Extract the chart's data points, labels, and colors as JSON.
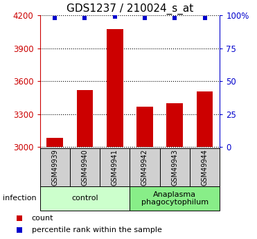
{
  "title": "GDS1237 / 210024_s_at",
  "samples": [
    "GSM49939",
    "GSM49940",
    "GSM49941",
    "GSM49942",
    "GSM49943",
    "GSM49944"
  ],
  "counts": [
    3085,
    3520,
    4075,
    3370,
    3400,
    3510
  ],
  "percentile_ranks": [
    98,
    98,
    99,
    98,
    98,
    98
  ],
  "ylim_left": [
    2990,
    4200
  ],
  "ylim_right": [
    -0.98,
    100
  ],
  "yticks_left": [
    3000,
    3300,
    3600,
    3900,
    4200
  ],
  "yticks_right": [
    0,
    25,
    50,
    75,
    100
  ],
  "ytick_labels_right": [
    "0",
    "25",
    "50",
    "75",
    "100%"
  ],
  "bar_color": "#cc0000",
  "dot_color": "#0000cc",
  "bar_width": 0.55,
  "groups": [
    {
      "label": "control",
      "indices": [
        0,
        1,
        2
      ],
      "color": "#ccffcc"
    },
    {
      "label": "Anaplasma\nphagocytophilum",
      "indices": [
        3,
        4,
        5
      ],
      "color": "#88ee88"
    }
  ],
  "infection_label": "infection",
  "legend_items": [
    {
      "color": "#cc0000",
      "label": "count"
    },
    {
      "color": "#0000cc",
      "label": "percentile rank within the sample"
    }
  ],
  "left_tick_color": "#cc0000",
  "right_tick_color": "#0000cc",
  "title_fontsize": 11,
  "tick_fontsize": 8.5,
  "sample_fontsize": 7,
  "group_fontsize": 8
}
